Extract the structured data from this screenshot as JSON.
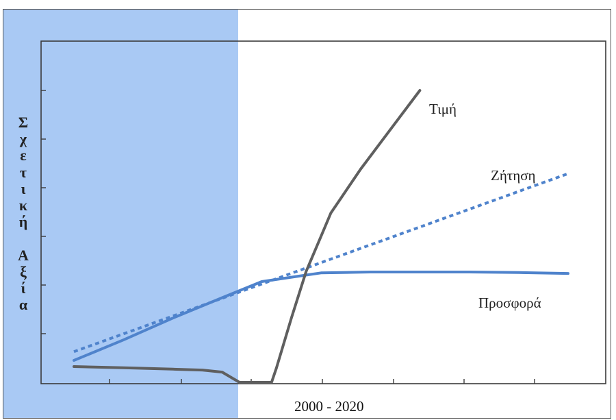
{
  "chart_data": {
    "type": "line",
    "title": "",
    "xlabel": "",
    "ylabel": "Σχετική Αξία",
    "ylabel_letters": [
      "Σ",
      "χ",
      "ε",
      "τ",
      "ι",
      "κ",
      "ή",
      "",
      "Α",
      "ξ",
      "ί",
      "α"
    ],
    "x_tick_label": "2000 - 2020",
    "xlim": [
      0,
      100
    ],
    "ylim": [
      0,
      100
    ],
    "grid": false,
    "legend": "none",
    "highlight_region": {
      "x_from": 0,
      "x_to": 33.2,
      "color": "#a9c9f4"
    },
    "series": [
      {
        "name": "Τιμή",
        "style": "solid",
        "color": "#5f5f5f",
        "x": [
          0,
          10,
          20,
          26,
          30,
          32,
          33.5,
          35.5,
          40,
          41,
          44,
          47,
          50,
          52,
          54,
          58,
          62,
          66,
          70
        ],
        "y": [
          5.4,
          5,
          4.5,
          4.2,
          3.5,
          1.5,
          0,
          0,
          0,
          5,
          22,
          38,
          50,
          58,
          63,
          73,
          82,
          91,
          100
        ]
      },
      {
        "name": "Ζήτηση",
        "style": "dashed",
        "color": "#4f83cc",
        "x": [
          0,
          100
        ],
        "y": [
          10.5,
          71.5
        ]
      },
      {
        "name": "Προσφορά",
        "style": "solid",
        "color": "#4f83cc",
        "x": [
          0,
          10,
          20,
          30,
          38,
          46,
          50,
          60,
          70,
          80,
          90,
          100
        ],
        "y": [
          7.5,
          14.5,
          22,
          29,
          34.5,
          36.5,
          37.5,
          37.8,
          37.8,
          37.8,
          37.6,
          37.3
        ]
      }
    ],
    "annotations": [
      "Τιμή",
      "Ζήτηση",
      "Προσφορά"
    ]
  }
}
